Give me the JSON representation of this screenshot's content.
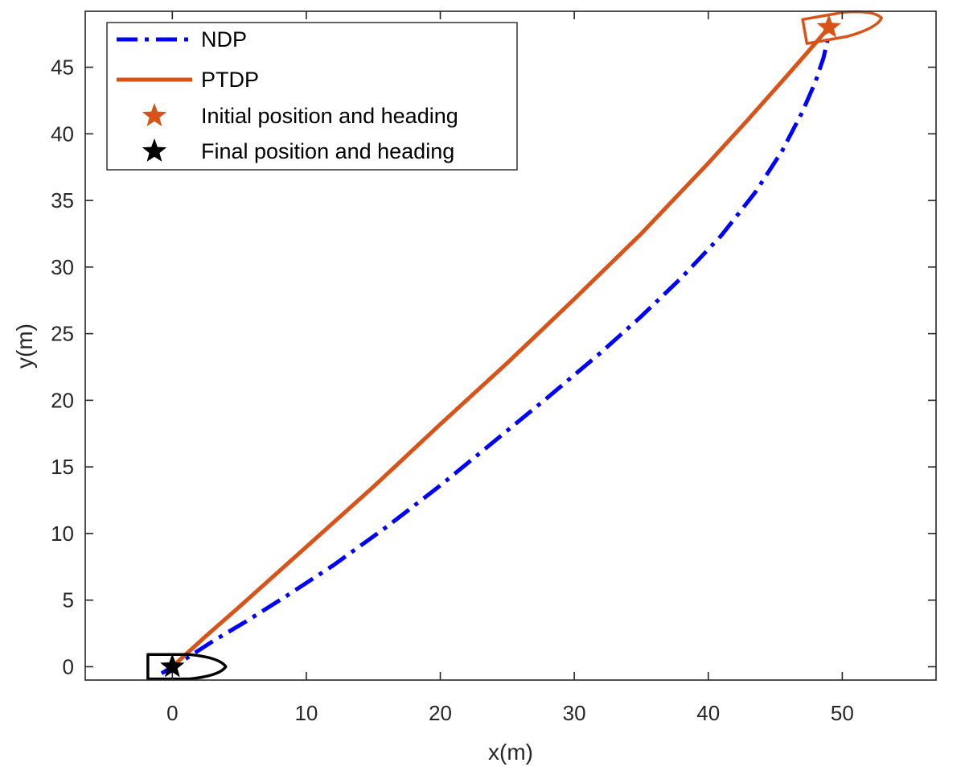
{
  "chart_data": {
    "type": "line",
    "xlabel": "x(m)",
    "ylabel": "y(m)",
    "xlim": [
      -6.5,
      57
    ],
    "ylim": [
      -1,
      49.2
    ],
    "xticks": [
      0,
      10,
      20,
      30,
      40,
      50
    ],
    "yticks": [
      0,
      5,
      10,
      15,
      20,
      25,
      30,
      35,
      40,
      45
    ],
    "grid": false,
    "legend_position": "top-left",
    "colors": {
      "ndp": "#0000ff",
      "ptdp": "#d95319",
      "final": "#000000",
      "axis": "#262626"
    },
    "series": [
      {
        "name": "NDP",
        "style": "dash-dot",
        "color": "#0000ff",
        "x": [
          -0.8,
          0,
          1,
          3,
          5.5,
          8.5,
          12,
          16,
          20,
          24,
          28,
          32,
          35,
          38,
          41,
          43.5,
          45.5,
          47,
          48,
          48.6,
          48.9,
          49
        ],
        "y": [
          -0.5,
          0,
          0.6,
          1.9,
          3.4,
          5.3,
          7.6,
          10.5,
          13.6,
          16.9,
          20.2,
          23.6,
          26.3,
          29.2,
          32.4,
          35.6,
          38.7,
          41.6,
          43.9,
          45.7,
          47,
          48
        ]
      },
      {
        "name": "PTDP",
        "style": "solid",
        "color": "#d95319",
        "x": [
          0,
          2.5,
          5,
          10,
          15,
          20,
          25,
          30,
          35,
          40,
          43,
          46,
          48,
          49
        ],
        "y": [
          0,
          2.3,
          4.5,
          9,
          13.5,
          18.2,
          22.8,
          27.6,
          32.5,
          37.8,
          41.1,
          44.5,
          46.8,
          48
        ]
      }
    ],
    "markers": [
      {
        "name": "Initial position and heading",
        "symbol": "star",
        "color": "#d95319",
        "x": 49,
        "y": 48,
        "heading_deg": 10
      },
      {
        "name": "Final position and heading",
        "symbol": "star",
        "color": "#000000",
        "x": 0,
        "y": 0,
        "heading_deg": 0
      }
    ],
    "legend": [
      "NDP",
      "PTDP",
      "Initial position and heading",
      "Final position and heading"
    ]
  }
}
